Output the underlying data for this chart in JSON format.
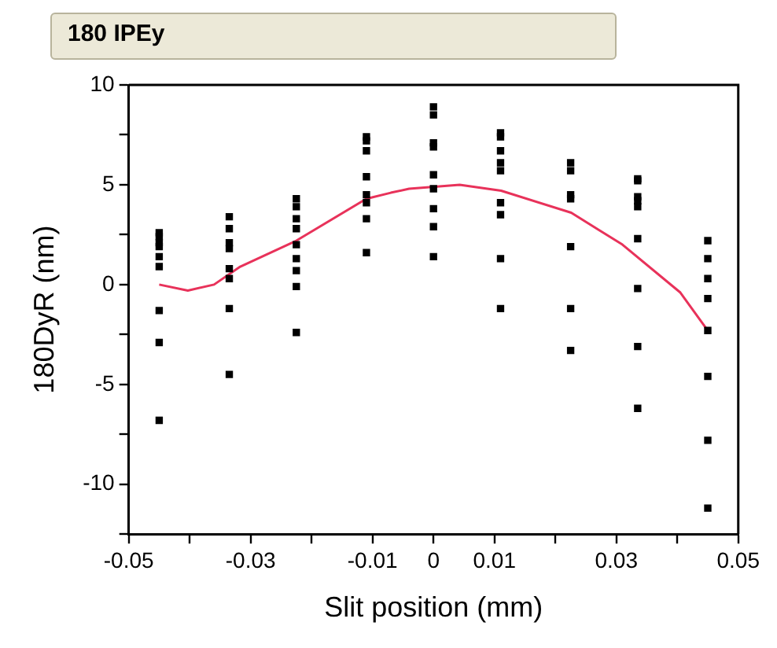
{
  "chart_data": {
    "type": "scatter",
    "title": "180 IPEy",
    "xlabel": "Slit position (mm)",
    "ylabel": "180DyR (nm)",
    "xlim": [
      -0.05,
      0.05
    ],
    "xticks": [
      -0.05,
      {
        "value": -0.04,
        "label": null
      },
      -0.03,
      {
        "value": -0.02,
        "label": null
      },
      -0.01,
      0,
      0.01,
      {
        "value": 0.02,
        "label": null
      },
      0.03,
      {
        "value": 0.04,
        "label": null
      },
      0.05
    ],
    "ylim": [
      -12.5,
      10
    ],
    "yticks": [
      {
        "value": -12.5,
        "label": null
      },
      -10,
      {
        "value": -7.5,
        "label": null
      },
      -5,
      {
        "value": -2.5,
        "label": null
      },
      0,
      {
        "value": 2.5,
        "label": null
      },
      5,
      {
        "value": 7.5,
        "label": null
      },
      10
    ],
    "grid": false,
    "legend": false,
    "series": [
      {
        "color": "#000000",
        "marker": "square",
        "x": [
          -0.045,
          -0.045,
          -0.045,
          -0.045,
          -0.045,
          -0.045,
          -0.045,
          -0.045,
          -0.045,
          -0.0335,
          -0.0335,
          -0.0335,
          -0.0335,
          -0.0335,
          -0.0335,
          -0.0335,
          -0.0335,
          -0.0225,
          -0.0225,
          -0.0225,
          -0.0225,
          -0.0225,
          -0.0225,
          -0.0225,
          -0.0225,
          -0.0225,
          -0.011,
          -0.011,
          -0.011,
          -0.011,
          -0.011,
          -0.011,
          -0.011,
          -0.011,
          0,
          0,
          0,
          0,
          0,
          0,
          0,
          0,
          0,
          0.011,
          0.011,
          0.011,
          0.011,
          0.011,
          0.011,
          0.011,
          0.011,
          0.011,
          0.0225,
          0.0225,
          0.0225,
          0.0225,
          0.0225,
          0.0225,
          0.0225,
          0.0335,
          0.0335,
          0.0335,
          0.0335,
          0.0335,
          0.0335,
          0.0335,
          0.0335,
          0.0335,
          0.045,
          0.045,
          0.045,
          0.045,
          0.045,
          0.045,
          0.045,
          0.045
        ],
        "values": [
          2.6,
          2.4,
          2.1,
          1.9,
          1.4,
          0.9,
          -1.3,
          -2.9,
          -6.8,
          3.4,
          2.8,
          2.1,
          1.8,
          0.8,
          0.3,
          -1.2,
          -4.5,
          4.3,
          3.9,
          3.3,
          2.8,
          2.0,
          1.3,
          0.7,
          -0.1,
          -2.4,
          7.4,
          7.2,
          6.7,
          5.4,
          4.5,
          4.1,
          3.3,
          1.6,
          8.9,
          8.5,
          7.1,
          6.9,
          5.5,
          4.8,
          3.8,
          2.9,
          1.4,
          7.6,
          7.4,
          6.7,
          6.1,
          5.7,
          4.1,
          3.5,
          1.3,
          -1.2,
          6.1,
          5.7,
          4.5,
          4.3,
          1.9,
          -1.2,
          -3.3,
          5.3,
          5.2,
          4.4,
          4.2,
          3.9,
          2.3,
          -0.2,
          -3.1,
          -6.2,
          2.2,
          1.3,
          0.3,
          -0.7,
          -2.3,
          -4.6,
          -7.8,
          -11.2
        ]
      },
      {
        "type": "line",
        "color": "#e8325a",
        "marker": "none",
        "line_style": "solid",
        "x": [
          -0.045,
          -0.0403,
          -0.036,
          -0.0317,
          -0.0225,
          -0.011,
          -0.007,
          -0.004,
          0.0043,
          0.0111,
          0.0226,
          0.031,
          0.0405,
          0.045
        ],
        "values": [
          0,
          -0.3,
          0,
          0.9,
          2.2,
          4.3,
          4.6,
          4.8,
          5.0,
          4.7,
          3.6,
          2.0,
          -0.4,
          -2.3
        ]
      }
    ]
  }
}
